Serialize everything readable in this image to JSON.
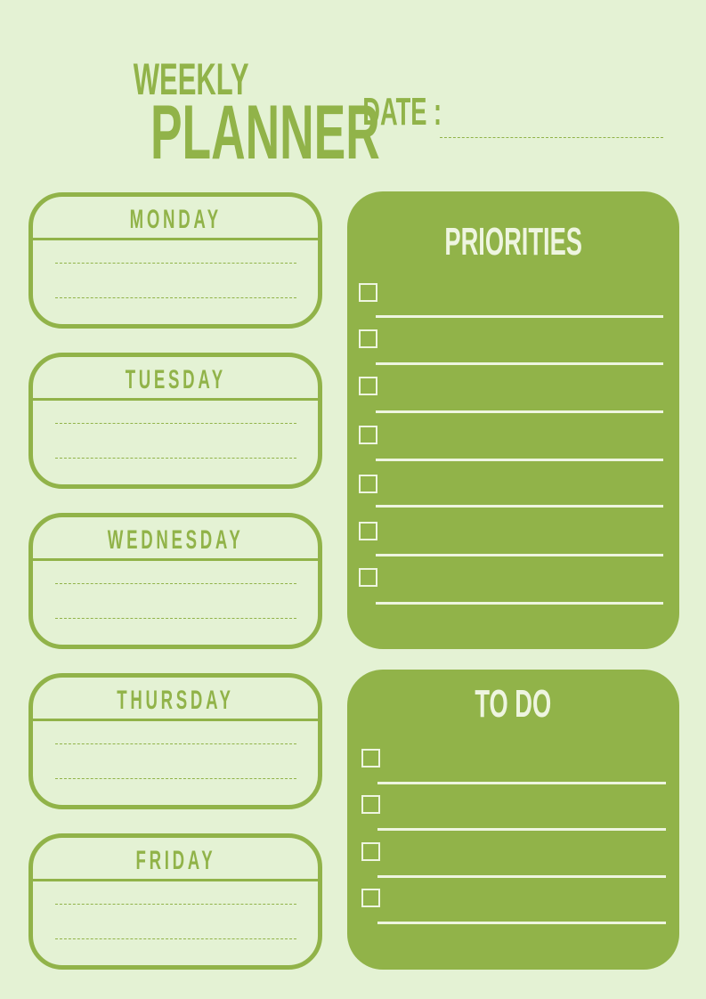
{
  "header": {
    "title_line1": "Weekly",
    "title_line2": "Planner",
    "date_label": "Date :"
  },
  "days": [
    {
      "name": "Monday"
    },
    {
      "name": "Tuesday"
    },
    {
      "name": "Wednesday"
    },
    {
      "name": "Thursday"
    },
    {
      "name": "Friday"
    }
  ],
  "priorities": {
    "title": "Priorities",
    "item_count": 7
  },
  "todo": {
    "title": "To Do",
    "item_count": 4
  },
  "colors": {
    "background": "#e4f2d4",
    "accent": "#91b349",
    "panel_text": "#eef5e0"
  }
}
